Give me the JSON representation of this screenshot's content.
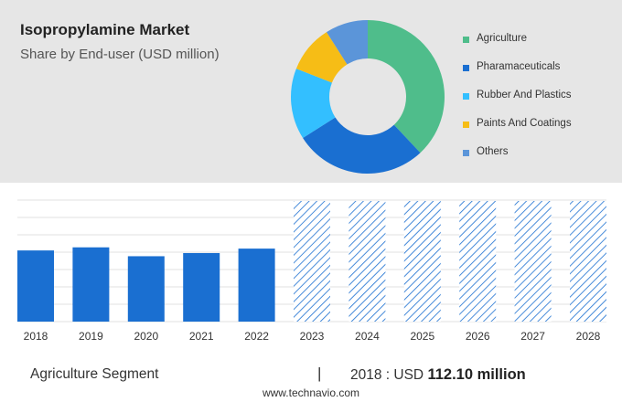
{
  "header": {
    "title": "Isopropylamine Market",
    "subtitle": "Share by End-user (USD million)"
  },
  "chart_data": [
    {
      "type": "pie",
      "variant": "donut",
      "legend_position": "right",
      "series": [
        {
          "name": "Agriculture",
          "value": 38,
          "color": "#4fbd8b"
        },
        {
          "name": "Pharamaceuticals",
          "value": 28,
          "color": "#1a6fd1"
        },
        {
          "name": "Rubber And Plastics",
          "value": 15,
          "color": "#33bfff"
        },
        {
          "name": "Paints And Coatings",
          "value": 10,
          "color": "#f6bd16"
        },
        {
          "name": "Others",
          "value": 9,
          "color": "#5b95d9"
        }
      ]
    },
    {
      "type": "bar",
      "categories": [
        "2018",
        "2019",
        "2020",
        "2021",
        "2022",
        "2023",
        "2024",
        "2025",
        "2026",
        "2027",
        "2028"
      ],
      "values": [
        112.1,
        117,
        103,
        108,
        115,
        null,
        null,
        null,
        null,
        null,
        null
      ],
      "forecast_from": "2023",
      "ylim": [
        0,
        190
      ],
      "grid": true,
      "actual_color": "#1a6fd1",
      "forecast_color": "#1a6fd1"
    }
  ],
  "footer": {
    "segment_label": "Agriculture Segment",
    "separator": "|",
    "year_text": "2018 : USD",
    "value_text": "112.10 million",
    "website": "www.technavio.com"
  }
}
